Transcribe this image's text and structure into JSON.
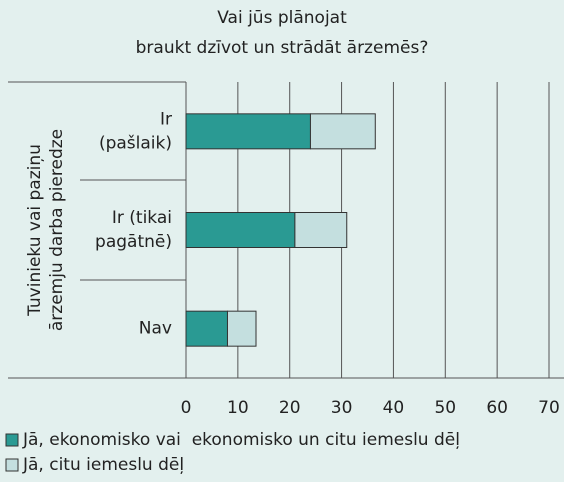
{
  "chart_data": {
    "type": "stacked_barh",
    "title": [
      "Vai jūs plānojat",
      "braukt dzīvot un strādāt ārzemēs?"
    ],
    "y_label": [
      "Tuvinieku vai paziņu",
      "ārzemju darba pieredze"
    ],
    "categories": [
      [
        "Ir",
        "(pašlaik)"
      ],
      [
        "Ir (tikai",
        "pagātnē)"
      ],
      [
        "Nav"
      ]
    ],
    "series": [
      {
        "name": "Jā, ekonomisko vai  ekonomisko un citu iemeslu dēļ",
        "color": "#2a9a93",
        "values": [
          24,
          21,
          8
        ]
      },
      {
        "name": "Jā, citu iemeslu dēļ",
        "color": "#c4dfdf",
        "values": [
          12.5,
          10,
          5.5
        ]
      }
    ],
    "xlim": [
      0,
      70
    ],
    "xticks": [
      0,
      10,
      20,
      30,
      40,
      50,
      60,
      70
    ],
    "grid": true
  }
}
